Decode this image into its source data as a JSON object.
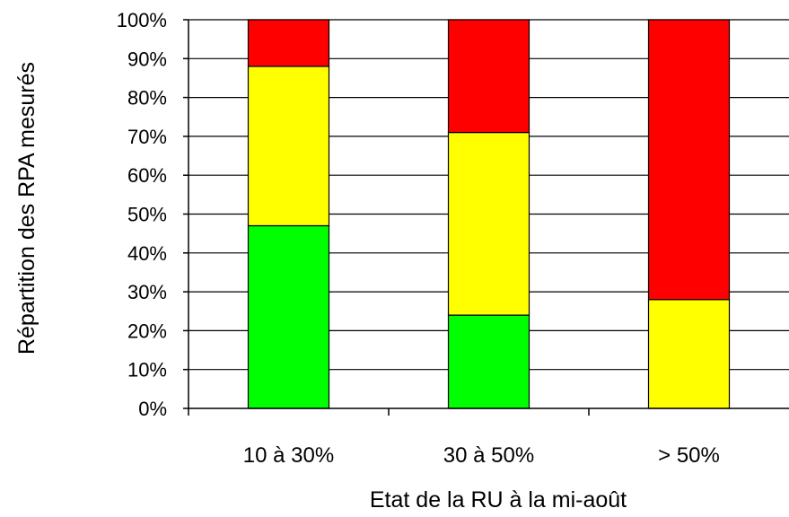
{
  "chart_data": {
    "type": "bar",
    "stacked": true,
    "normalized": true,
    "categories": [
      "10 à 30%",
      "30 à 50%",
      "> 50%"
    ],
    "series": [
      {
        "values": [
          47,
          24,
          0
        ],
        "color": "#00ff00"
      },
      {
        "values": [
          41,
          47,
          28
        ],
        "color": "#ffff00"
      },
      {
        "values": [
          12,
          29,
          72
        ],
        "color": "#ff0000"
      }
    ],
    "title": "",
    "xlabel": "Etat de la RU à la mi-août",
    "ylabel": "Répartition des RPA mesurés",
    "ylim": [
      0,
      100
    ],
    "yticks": [
      "0%",
      "10%",
      "20%",
      "30%",
      "40%",
      "50%",
      "60%",
      "70%",
      "80%",
      "90%",
      "100%"
    ],
    "grid": true,
    "legend": "none"
  }
}
